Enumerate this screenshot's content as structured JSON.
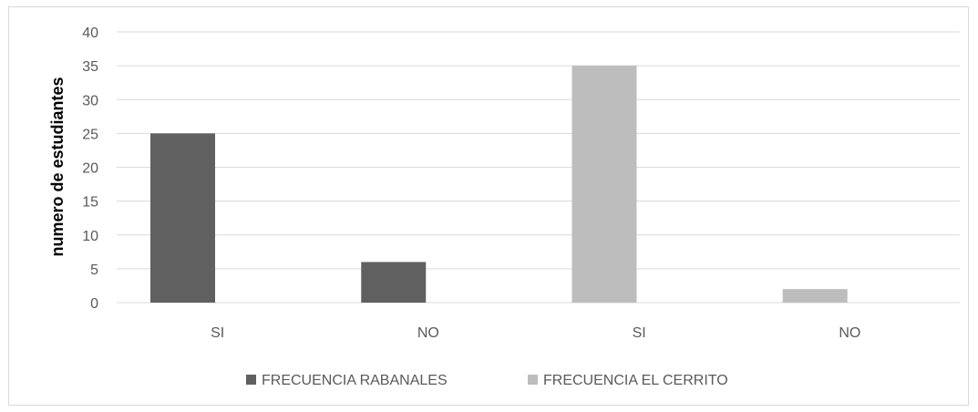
{
  "chart_data": {
    "type": "bar",
    "categories": [
      "SI",
      "NO",
      "SI",
      "NO"
    ],
    "series": [
      {
        "name": "FRECUENCIA RABANALES",
        "values": [
          25,
          6,
          null,
          null
        ],
        "color": "#606060"
      },
      {
        "name": "FRECUENCIA EL CERRITO",
        "values": [
          null,
          null,
          35,
          2
        ],
        "color": "#bdbdbd"
      }
    ],
    "ylabel": "numero de estudiantes",
    "ylim": [
      0,
      40
    ],
    "yticks": [
      0,
      5,
      10,
      15,
      20,
      25,
      30,
      35,
      40
    ],
    "grid": true,
    "legend": "bottom"
  }
}
